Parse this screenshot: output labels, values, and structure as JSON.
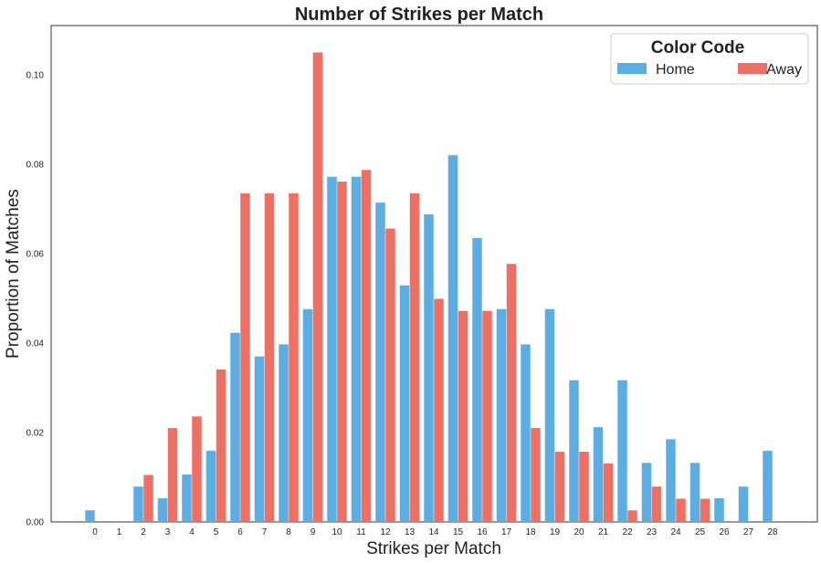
{
  "chart_data": {
    "type": "bar",
    "title": "Number of Strikes per Match",
    "xlabel": "Strikes per Match",
    "ylabel": "Proportion of Matches",
    "categories": [
      "0",
      "1",
      "2",
      "3",
      "4",
      "5",
      "6",
      "7",
      "8",
      "9",
      "10",
      "11",
      "12",
      "13",
      "14",
      "15",
      "16",
      "17",
      "18",
      "19",
      "20",
      "21",
      "22",
      "23",
      "24",
      "25",
      "26",
      "27",
      "28"
    ],
    "yticks": [
      "0.00",
      "0.02",
      "0.04",
      "0.06",
      "0.08",
      "0.10"
    ],
    "ylim": [
      0,
      0.111
    ],
    "grid": false,
    "legend": {
      "title": "Color Code",
      "placement": "top-right"
    },
    "series": [
      {
        "name": "Home",
        "color": "#5DADE2",
        "values": [
          0.0026,
          0,
          0.0079,
          0.0053,
          0.0106,
          0.0159,
          0.0423,
          0.037,
          0.0397,
          0.0476,
          0.0772,
          0.0772,
          0.0714,
          0.0529,
          0.0688,
          0.082,
          0.0635,
          0.0476,
          0.0397,
          0.0476,
          0.0317,
          0.0212,
          0.0317,
          0.0132,
          0.0185,
          0.0132,
          0.0053,
          0.0079,
          0.0159
        ]
      },
      {
        "name": "Away",
        "color": "#EC7063",
        "values": [
          0,
          0,
          0.0105,
          0.021,
          0.0236,
          0.0341,
          0.0735,
          0.0735,
          0.0735,
          0.105,
          0.0761,
          0.0787,
          0.0656,
          0.0735,
          0.0499,
          0.0472,
          0.0472,
          0.0577,
          0.021,
          0.0157,
          0.0157,
          0.0131,
          0.0026,
          0.0079,
          0.0052,
          0.0052,
          0,
          0,
          0
        ]
      }
    ]
  }
}
